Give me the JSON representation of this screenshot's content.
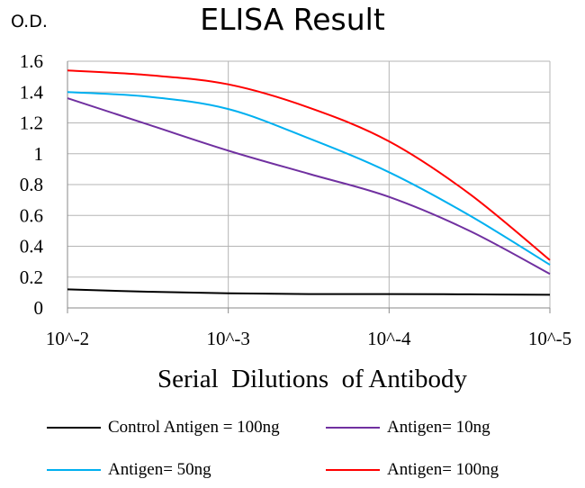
{
  "chart_data": {
    "type": "line",
    "title": "ELISA Result",
    "ylabel": "O.D.",
    "xlabel": "Serial  Dilutions  of Antibody",
    "categories": [
      "10^-2",
      "10^-3",
      "10^-4",
      "10^-5"
    ],
    "x_scale": "log",
    "ylim": [
      0,
      1.6
    ],
    "yticks": [
      0,
      0.2,
      0.4,
      0.6,
      0.8,
      1,
      1.2,
      1.4,
      1.6
    ],
    "ytick_labels": [
      "0",
      "0.2",
      "0.4",
      "0.6",
      "0.8",
      "1",
      "1.2",
      "1.4",
      "1.6"
    ],
    "grid": true,
    "legend_position": "bottom",
    "series": [
      {
        "name": "Control Antigen = 100ng",
        "color": "#000000",
        "x": [
          0,
          0.5,
          1,
          1.5,
          2,
          2.5,
          3
        ],
        "y": [
          0.12,
          0.105,
          0.095,
          0.09,
          0.09,
          0.088,
          0.085
        ]
      },
      {
        "name": "Antigen= 10ng",
        "color": "#7030a0",
        "x": [
          0,
          0.5,
          1,
          1.5,
          2,
          2.5,
          3
        ],
        "y": [
          1.36,
          1.19,
          1.02,
          0.87,
          0.72,
          0.5,
          0.22
        ]
      },
      {
        "name": "Antigen= 50ng",
        "color": "#00b0f0",
        "x": [
          0,
          0.5,
          1,
          1.5,
          2,
          2.5,
          3
        ],
        "y": [
          1.4,
          1.37,
          1.29,
          1.1,
          0.88,
          0.6,
          0.28
        ]
      },
      {
        "name": "Antigen= 100ng",
        "color": "#ff0000",
        "x": [
          0,
          0.5,
          1,
          1.5,
          2,
          2.5,
          3
        ],
        "y": [
          1.54,
          1.51,
          1.45,
          1.3,
          1.08,
          0.74,
          0.31
        ]
      }
    ]
  }
}
